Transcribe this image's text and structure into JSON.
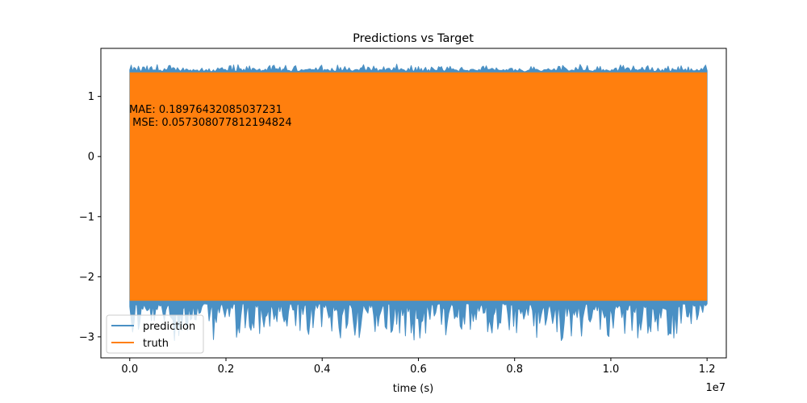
{
  "chart_data": {
    "type": "line",
    "title": "Predictions vs Target",
    "xlabel": "time (s)",
    "ylabel": "",
    "x_offset_label": "1e7",
    "xlim": [
      -0.06,
      1.24
    ],
    "ylim": [
      -3.35,
      1.8
    ],
    "x_ticks": [
      0.0,
      0.2,
      0.4,
      0.6,
      0.8,
      1.0,
      1.2
    ],
    "x_tick_labels": [
      "0.0",
      "0.2",
      "0.4",
      "0.6",
      "0.8",
      "1.0",
      "1.2"
    ],
    "y_ticks": [
      -3,
      -2,
      -1,
      0,
      1
    ],
    "y_tick_labels": [
      "−3",
      "−2",
      "−1",
      "0",
      "1"
    ],
    "x_range": [
      0.0,
      1.2
    ],
    "series": [
      {
        "name": "prediction",
        "color": "#4a90c4",
        "min": -3.1,
        "max": 1.55,
        "envelope_top": 1.45,
        "envelope_bottom": -2.45
      },
      {
        "name": "truth",
        "color": "#ff7f0e",
        "min": -2.4,
        "max": 1.4
      }
    ],
    "annotation": {
      "lines": [
        "MAE: 0.18976432085037231",
        " MSE: 0.057308077812194824"
      ]
    },
    "legend": {
      "placement": "lower-left"
    },
    "grid": false
  }
}
